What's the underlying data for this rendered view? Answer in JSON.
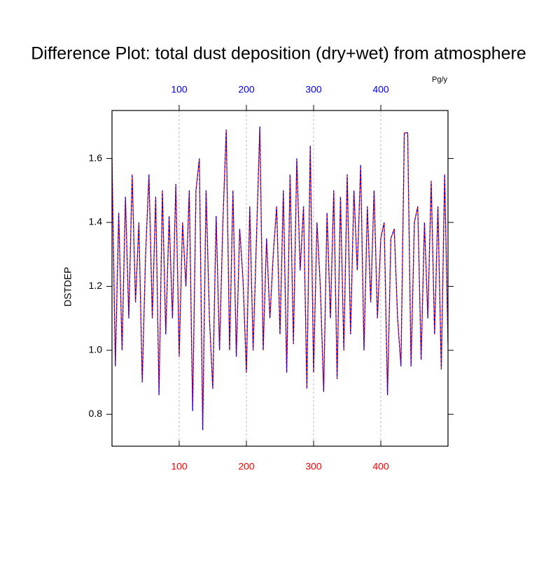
{
  "chart_data": {
    "type": "line",
    "title": "Difference Plot: total dust deposition (dry+wet) from atmosphere",
    "y_label": "DSTDEP",
    "units": "Pg/y",
    "x": [
      0,
      5,
      10,
      15,
      20,
      25,
      30,
      35,
      40,
      45,
      50,
      55,
      60,
      65,
      70,
      75,
      80,
      85,
      90,
      95,
      100,
      105,
      110,
      115,
      120,
      125,
      130,
      135,
      140,
      145,
      150,
      155,
      160,
      165,
      170,
      175,
      180,
      185,
      190,
      195,
      200,
      205,
      210,
      215,
      220,
      225,
      230,
      235,
      240,
      245,
      250,
      255,
      260,
      265,
      270,
      275,
      280,
      285,
      290,
      295,
      300,
      305,
      310,
      315,
      320,
      325,
      330,
      335,
      340,
      345,
      350,
      355,
      360,
      365,
      370,
      375,
      380,
      385,
      390,
      395,
      400,
      405,
      410,
      415,
      420,
      425,
      430,
      435,
      440,
      445,
      450,
      455,
      460,
      465,
      470,
      475,
      480,
      485,
      490,
      495,
      500
    ],
    "series": [
      {
        "color": "#ff0000",
        "dash": false,
        "values": [
          1.6,
          0.95,
          1.43,
          1.0,
          1.48,
          1.1,
          1.55,
          1.15,
          1.4,
          0.9,
          1.3,
          1.55,
          1.1,
          1.48,
          0.86,
          1.5,
          1.05,
          1.42,
          1.1,
          1.52,
          0.98,
          1.4,
          1.2,
          1.5,
          0.81,
          1.5,
          1.6,
          0.75,
          1.5,
          1.1,
          0.88,
          1.42,
          1.0,
          1.4,
          1.69,
          1.0,
          1.5,
          0.98,
          1.38,
          1.22,
          0.93,
          1.45,
          1.0,
          1.35,
          1.7,
          1.0,
          1.35,
          1.1,
          1.3,
          1.45,
          1.05,
          1.5,
          0.93,
          1.55,
          1.02,
          1.6,
          1.25,
          1.45,
          0.88,
          1.64,
          0.93,
          1.4,
          1.2,
          0.87,
          1.43,
          1.1,
          1.5,
          0.91,
          1.48,
          1.0,
          1.55,
          1.05,
          1.5,
          1.25,
          1.58,
          1.0,
          1.45,
          1.15,
          1.5,
          1.1,
          1.35,
          1.4,
          0.86,
          1.35,
          1.38,
          1.1,
          0.95,
          1.68,
          1.68,
          0.95,
          1.4,
          1.45,
          0.97,
          1.4,
          1.1,
          1.53,
          1.05,
          1.45,
          0.94,
          1.55,
          1.02
        ]
      },
      {
        "color": "#0000ff",
        "dash": true,
        "values": [
          1.6,
          0.95,
          1.43,
          1.0,
          1.48,
          1.1,
          1.55,
          1.15,
          1.4,
          0.9,
          1.3,
          1.55,
          1.1,
          1.48,
          0.86,
          1.5,
          1.05,
          1.42,
          1.1,
          1.52,
          0.98,
          1.4,
          1.2,
          1.5,
          0.81,
          1.5,
          1.6,
          0.75,
          1.5,
          1.1,
          0.88,
          1.42,
          1.0,
          1.4,
          1.69,
          1.0,
          1.5,
          0.98,
          1.38,
          1.22,
          0.93,
          1.45,
          1.0,
          1.35,
          1.7,
          1.0,
          1.35,
          1.1,
          1.3,
          1.45,
          1.05,
          1.5,
          0.93,
          1.55,
          1.02,
          1.6,
          1.25,
          1.45,
          0.88,
          1.64,
          0.93,
          1.4,
          1.2,
          0.87,
          1.43,
          1.1,
          1.5,
          0.91,
          1.48,
          1.0,
          1.55,
          1.05,
          1.5,
          1.25,
          1.58,
          1.0,
          1.45,
          1.15,
          1.5,
          1.1,
          1.35,
          1.4,
          0.86,
          1.35,
          1.38,
          1.1,
          0.95,
          1.68,
          1.68,
          0.95,
          1.4,
          1.45,
          0.97,
          1.4,
          1.1,
          1.53,
          1.05,
          1.45,
          0.94,
          1.55,
          1.02
        ]
      }
    ],
    "xlim": [
      0,
      500
    ],
    "xticks": [
      100,
      200,
      300,
      400
    ],
    "ylim": [
      0.7,
      1.75
    ],
    "yticks": [
      {
        "value": 0.8,
        "label": "0.8"
      },
      {
        "value": 1.0,
        "label": "1.0"
      },
      {
        "value": 1.2,
        "label": "1.2"
      },
      {
        "value": 1.4,
        "label": "1.4"
      },
      {
        "value": 1.6,
        "label": "1.6"
      }
    ],
    "top_axis_color": "#0000ff",
    "bottom_axis_color": "#ff0000",
    "grid": true
  }
}
